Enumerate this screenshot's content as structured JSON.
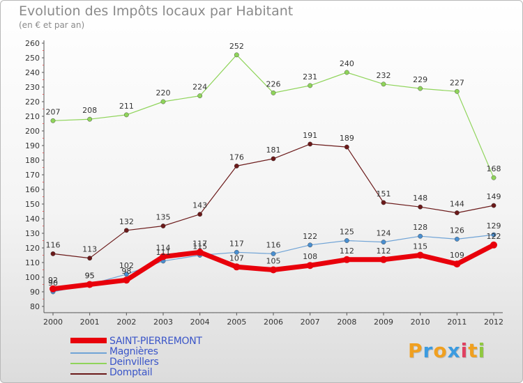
{
  "title": "Evolution des Impôts locaux par Habitant",
  "subtitle": "(en € et par an)",
  "chart_data": {
    "type": "line",
    "title": "Evolution des Impôts locaux par Habitant",
    "subtitle": "(en € et par an)",
    "xlabel": "",
    "ylabel": "",
    "ylim": [
      80,
      260
    ],
    "yticks": [
      80,
      90,
      100,
      110,
      120,
      130,
      140,
      150,
      160,
      170,
      180,
      190,
      200,
      210,
      220,
      230,
      240,
      250,
      260
    ],
    "categories": [
      "2000",
      "2001",
      "2002",
      "2003",
      "2004",
      "2005",
      "2006",
      "2007",
      "2008",
      "2009",
      "2010",
      "2011",
      "2012"
    ],
    "grid": false,
    "legend_position": "bottom-left",
    "series": [
      {
        "name": "Domptail",
        "color": "#6b1a1a",
        "values": [
          116,
          113,
          132,
          135,
          143,
          176,
          181,
          191,
          189,
          151,
          148,
          144,
          149
        ]
      },
      {
        "name": "Deinvillers",
        "color": "#8fd45a",
        "values": [
          207,
          208,
          211,
          220,
          224,
          252,
          226,
          231,
          240,
          232,
          229,
          227,
          168
        ]
      },
      {
        "name": "Magnières",
        "color": "#6fa3d6",
        "values": [
          90,
          95,
          102,
          111,
          115,
          117,
          116,
          122,
          125,
          124,
          128,
          126,
          129
        ]
      },
      {
        "name": "SAINT-PIERREMONT",
        "color": "#e8000b",
        "values": [
          92,
          95,
          98,
          114,
          117,
          107,
          105,
          108,
          112,
          112,
          115,
          109,
          122
        ]
      }
    ]
  },
  "legend": {
    "items": [
      {
        "label": "SAINT-PIERREMONT",
        "color": "#e8000b"
      },
      {
        "label": "Magnières",
        "color": "#6fa3d6"
      },
      {
        "label": "Deinvillers",
        "color": "#8fd45a"
      },
      {
        "label": "Domptail",
        "color": "#6b1a1a"
      }
    ]
  },
  "logo": {
    "letters": [
      "P",
      "r",
      "o",
      "x",
      "i",
      "t",
      "i"
    ],
    "colors": [
      "#f0a020",
      "#3b9be0",
      "#f0a020",
      "#3b9be0",
      "#e04060",
      "#f0a020",
      "#8fc840"
    ]
  }
}
